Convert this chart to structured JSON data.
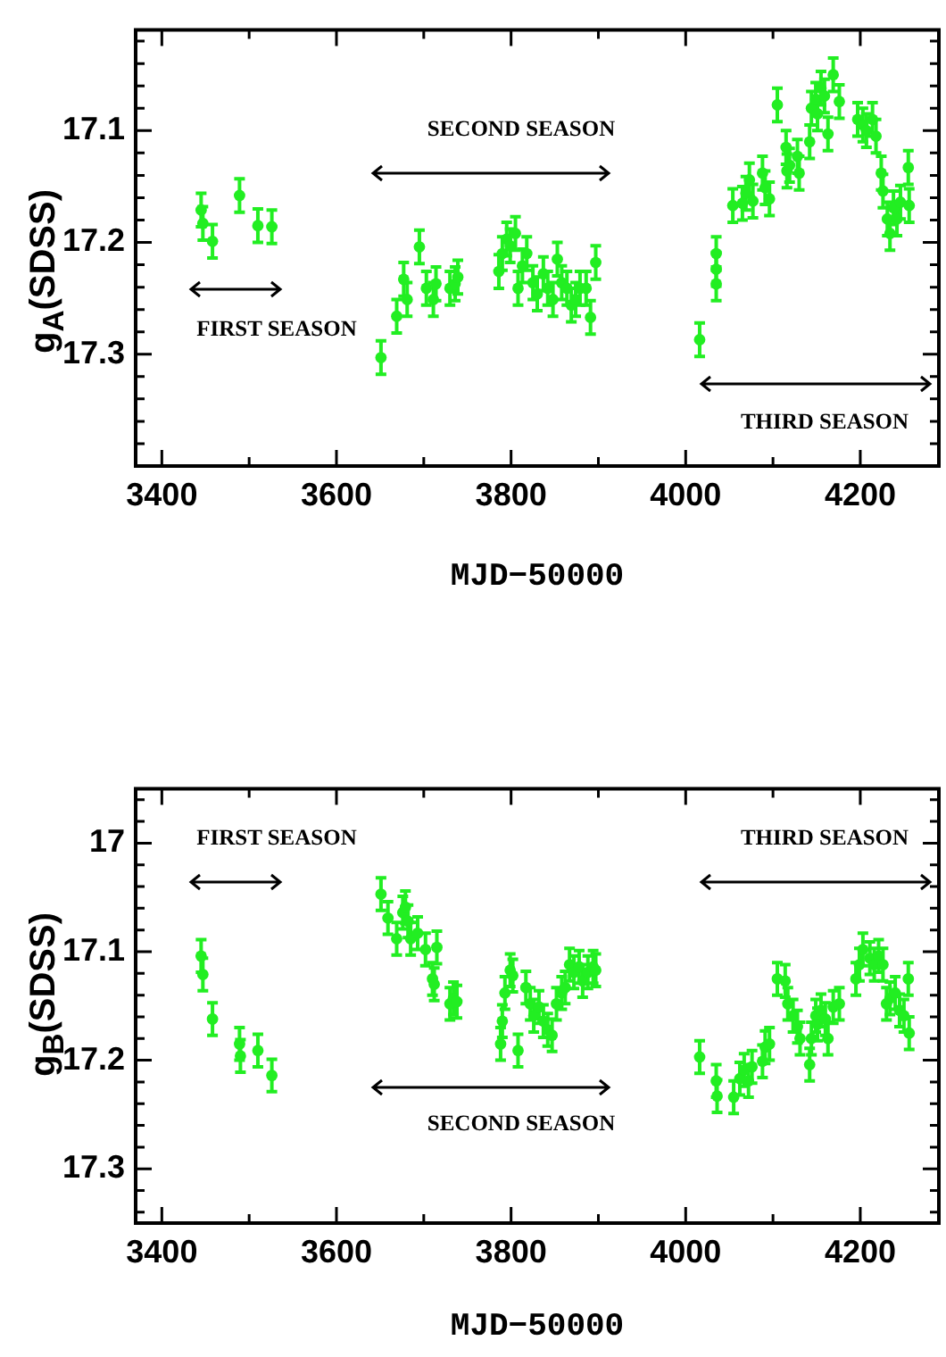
{
  "chart_data": [
    {
      "type": "scatter",
      "xlabel": "MJD−50000",
      "ylabel": "g$_{A}$(SDSS)",
      "color": "#22ee22",
      "marker": "circle",
      "x": [
        3445,
        3447,
        3458,
        3489,
        3510,
        3526,
        3651,
        3669,
        3677,
        3681,
        3695,
        3703,
        3711,
        3714,
        3730,
        3736,
        3739,
        3786,
        3790,
        3795,
        3799,
        3805,
        3808,
        3813,
        3818,
        3825,
        3830,
        3837,
        3842,
        3848,
        3853,
        3858,
        3864,
        3869,
        3874,
        3879,
        3886,
        3891,
        3897,
        4016,
        4035,
        4035,
        4035,
        4054,
        4065,
        4069,
        4073,
        4077,
        4088,
        4091,
        4096,
        4105,
        4115,
        4116,
        4119,
        4128,
        4130,
        4142,
        4144,
        4149,
        4151,
        4155,
        4159,
        4163,
        4169,
        4176,
        4197,
        4203,
        4207,
        4214,
        4218,
        4224,
        4226,
        4231,
        4234,
        4238,
        4242,
        4246,
        4255,
        4256
      ],
      "values": [
        17.171,
        17.183,
        17.199,
        17.158,
        17.185,
        17.186,
        17.303,
        17.266,
        17.233,
        17.251,
        17.204,
        17.241,
        17.251,
        17.237,
        17.241,
        17.237,
        17.231,
        17.226,
        17.21,
        17.197,
        17.203,
        17.192,
        17.241,
        17.221,
        17.21,
        17.236,
        17.246,
        17.228,
        17.241,
        17.251,
        17.215,
        17.236,
        17.241,
        17.256,
        17.251,
        17.241,
        17.241,
        17.267,
        17.218,
        17.287,
        17.21,
        17.224,
        17.237,
        17.167,
        17.165,
        17.156,
        17.144,
        17.163,
        17.138,
        17.151,
        17.161,
        17.077,
        17.115,
        17.136,
        17.131,
        17.123,
        17.138,
        17.11,
        17.08,
        17.072,
        17.085,
        17.062,
        17.069,
        17.103,
        17.05,
        17.074,
        17.09,
        17.095,
        17.1,
        17.09,
        17.105,
        17.138,
        17.154,
        17.179,
        17.192,
        17.169,
        17.179,
        17.164,
        17.133,
        17.167
      ],
      "errors": [
        0.015,
        0.015,
        0.015,
        0.015,
        0.015,
        0.015,
        0.015,
        0.015,
        0.015,
        0.015,
        0.015,
        0.015,
        0.015,
        0.015,
        0.015,
        0.015,
        0.015,
        0.015,
        0.015,
        0.015,
        0.015,
        0.015,
        0.015,
        0.015,
        0.015,
        0.015,
        0.015,
        0.015,
        0.015,
        0.015,
        0.015,
        0.015,
        0.015,
        0.015,
        0.015,
        0.015,
        0.015,
        0.015,
        0.015,
        0.015,
        0.015,
        0.015,
        0.015,
        0.015,
        0.015,
        0.015,
        0.015,
        0.015,
        0.015,
        0.015,
        0.015,
        0.015,
        0.015,
        0.015,
        0.015,
        0.015,
        0.015,
        0.015,
        0.015,
        0.015,
        0.015,
        0.015,
        0.015,
        0.015,
        0.015,
        0.015,
        0.015,
        0.015,
        0.015,
        0.015,
        0.015,
        0.015,
        0.015,
        0.015,
        0.015,
        0.015,
        0.015,
        0.015,
        0.015,
        0.015
      ],
      "xlim": [
        3370,
        4290
      ],
      "ylim": [
        17.4,
        17.01
      ],
      "xticks": [
        3400,
        {
          "value": 3500,
          "label": null
        },
        3600,
        {
          "value": 3700,
          "label": null
        },
        3800,
        {
          "value": 3900,
          "label": null
        },
        4000,
        {
          "value": 4100,
          "label": null
        },
        4200
      ],
      "yticks": [
        {
          "value": 17.02,
          "label": null
        },
        {
          "value": 17.04,
          "label": null
        },
        {
          "value": 17.06,
          "label": null
        },
        {
          "value": 17.08,
          "label": null
        },
        17.1,
        {
          "value": 17.12,
          "label": null
        },
        {
          "value": 17.14,
          "label": null
        },
        {
          "value": 17.16,
          "label": null
        },
        {
          "value": 17.18,
          "label": null
        },
        17.2,
        {
          "value": 17.22,
          "label": null
        },
        {
          "value": 17.24,
          "label": null
        },
        {
          "value": 17.26,
          "label": null
        },
        {
          "value": 17.28,
          "label": null
        },
        17.3,
        {
          "value": 17.32,
          "label": null
        },
        {
          "value": 17.34,
          "label": null
        },
        {
          "value": 17.36,
          "label": null
        },
        {
          "value": 17.38,
          "label": null
        }
      ],
      "annotations": [
        "FIRST SEASON",
        "SECOND SEASON",
        "THIRD SEASON"
      ]
    },
    {
      "type": "scatter",
      "xlabel": "MJD−50000",
      "ylabel": "g$_{B}$(SDSS)",
      "color": "#22ee22",
      "marker": "circle",
      "x": [
        3445,
        3447,
        3458,
        3489,
        3490,
        3510,
        3526,
        3651,
        3659,
        3669,
        3676,
        3679,
        3682,
        3685,
        3693,
        3702,
        3710,
        3712,
        3715,
        3730,
        3734,
        3738,
        3788,
        3790,
        3793,
        3799,
        3802,
        3808,
        3817,
        3822,
        3826,
        3832,
        3837,
        3842,
        3847,
        3852,
        3858,
        3862,
        3867,
        3872,
        3878,
        3882,
        3888,
        3894,
        3897,
        4016,
        4035,
        4036,
        4055,
        4062,
        4067,
        4072,
        4076,
        4088,
        4091,
        4096,
        4105,
        4114,
        4117,
        4123,
        4128,
        4131,
        4142,
        4144,
        4149,
        4151,
        4155,
        4160,
        4163,
        4169,
        4176,
        4195,
        4199,
        4203,
        4211,
        4216,
        4221,
        4226,
        4230,
        4234,
        4240,
        4245,
        4250,
        4255,
        4256
      ],
      "values": [
        17.104,
        17.121,
        17.162,
        17.185,
        17.196,
        17.191,
        17.214,
        17.047,
        17.069,
        17.088,
        17.064,
        17.059,
        17.072,
        17.088,
        17.083,
        17.098,
        17.125,
        17.13,
        17.096,
        17.148,
        17.143,
        17.146,
        17.185,
        17.164,
        17.138,
        17.117,
        17.122,
        17.191,
        17.133,
        17.148,
        17.159,
        17.151,
        17.164,
        17.172,
        17.177,
        17.148,
        17.138,
        17.133,
        17.112,
        17.119,
        17.114,
        17.127,
        17.119,
        17.114,
        17.117,
        17.197,
        17.219,
        17.233,
        17.234,
        17.217,
        17.209,
        17.219,
        17.206,
        17.201,
        17.188,
        17.185,
        17.125,
        17.127,
        17.148,
        17.159,
        17.169,
        17.18,
        17.204,
        17.18,
        17.159,
        17.167,
        17.154,
        17.162,
        17.18,
        17.151,
        17.148,
        17.125,
        17.112,
        17.098,
        17.106,
        17.112,
        17.104,
        17.112,
        17.148,
        17.143,
        17.138,
        17.154,
        17.159,
        17.125,
        17.175
      ],
      "errors": [
        0.015,
        0.015,
        0.015,
        0.015,
        0.015,
        0.015,
        0.015,
        0.015,
        0.015,
        0.015,
        0.015,
        0.015,
        0.015,
        0.015,
        0.015,
        0.015,
        0.015,
        0.015,
        0.015,
        0.015,
        0.015,
        0.015,
        0.015,
        0.015,
        0.015,
        0.015,
        0.015,
        0.015,
        0.015,
        0.015,
        0.015,
        0.015,
        0.015,
        0.015,
        0.015,
        0.015,
        0.015,
        0.015,
        0.015,
        0.015,
        0.015,
        0.015,
        0.015,
        0.015,
        0.015,
        0.015,
        0.015,
        0.015,
        0.015,
        0.015,
        0.015,
        0.015,
        0.015,
        0.015,
        0.015,
        0.015,
        0.015,
        0.015,
        0.015,
        0.015,
        0.015,
        0.015,
        0.015,
        0.015,
        0.015,
        0.015,
        0.015,
        0.015,
        0.015,
        0.015,
        0.015,
        0.015,
        0.015,
        0.015,
        0.015,
        0.015,
        0.015,
        0.015,
        0.015,
        0.015,
        0.015,
        0.015,
        0.015,
        0.015,
        0.015
      ],
      "xlim": [
        3370,
        4290
      ],
      "ylim": [
        17.35,
        16.95
      ],
      "xticks": [
        3400,
        {
          "value": 3500,
          "label": null
        },
        3600,
        {
          "value": 3700,
          "label": null
        },
        3800,
        {
          "value": 3900,
          "label": null
        },
        4000,
        {
          "value": 4100,
          "label": null
        },
        4200
      ],
      "yticks": [
        {
          "value": 16.96,
          "label": null
        },
        {
          "value": 16.98,
          "label": null
        },
        17,
        {
          "value": 17.02,
          "label": null
        },
        {
          "value": 17.04,
          "label": null
        },
        {
          "value": 17.06,
          "label": null
        },
        {
          "value": 17.08,
          "label": null
        },
        17.1,
        {
          "value": 17.12,
          "label": null
        },
        {
          "value": 17.14,
          "label": null
        },
        {
          "value": 17.16,
          "label": null
        },
        {
          "value": 17.18,
          "label": null
        },
        17.2,
        {
          "value": 17.22,
          "label": null
        },
        {
          "value": 17.24,
          "label": null
        },
        {
          "value": 17.26,
          "label": null
        },
        {
          "value": 17.28,
          "label": null
        },
        17.3,
        {
          "value": 17.32,
          "label": null
        },
        {
          "value": 17.34,
          "label": null
        }
      ],
      "annotations": [
        "FIRST SEASON",
        "SECOND SEASON",
        "THIRD SEASON"
      ]
    }
  ]
}
